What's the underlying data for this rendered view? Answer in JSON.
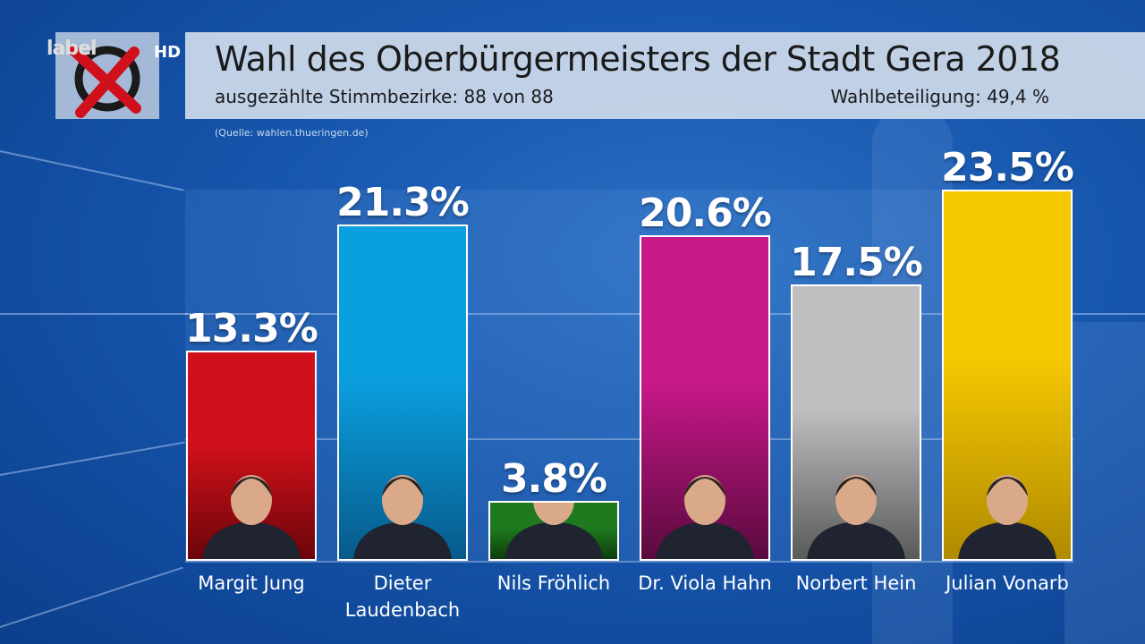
{
  "header": {
    "brand": "label HD",
    "brand_main": "label",
    "brand_hd": "HD",
    "title": "Wahl des Oberbürgermeisters der Stadt Gera 2018",
    "subtitle": "ausgezählte Stimmbezirke: 88 von 88",
    "turnout": "Wahlbeteiligung: 49,4 %",
    "source": "(Quelle: wahlen.thueringen.de)"
  },
  "chart_data": {
    "type": "bar",
    "title": "Wahl des Oberbürgermeisters der Stadt Gera 2018",
    "xlabel": "",
    "ylabel": "",
    "ylim": [
      0,
      23.5
    ],
    "grid": true,
    "categories": [
      "Margit Jung",
      "Dieter\nLaudenbach",
      "Nils Fröhlich",
      "Dr. Viola Hahn",
      "Norbert Hein",
      "Julian Vonarb"
    ],
    "values": [
      13.3,
      21.3,
      3.8,
      20.6,
      17.5,
      23.5
    ],
    "value_labels": [
      "13.3%",
      "21.3%",
      "3.8%",
      "20.6%",
      "17.5%",
      "23.5%"
    ],
    "colors": [
      [
        "#d0101a",
        "#6a050a"
      ],
      [
        "#0aa0e0",
        "#075a8a"
      ],
      [
        "#1f7a1f",
        "#0d3d0d"
      ],
      [
        "#c8188a",
        "#5a0a3e"
      ],
      [
        "#bfbfbf",
        "#5a5a5a"
      ],
      [
        "#f5c800",
        "#b08a00"
      ]
    ]
  }
}
